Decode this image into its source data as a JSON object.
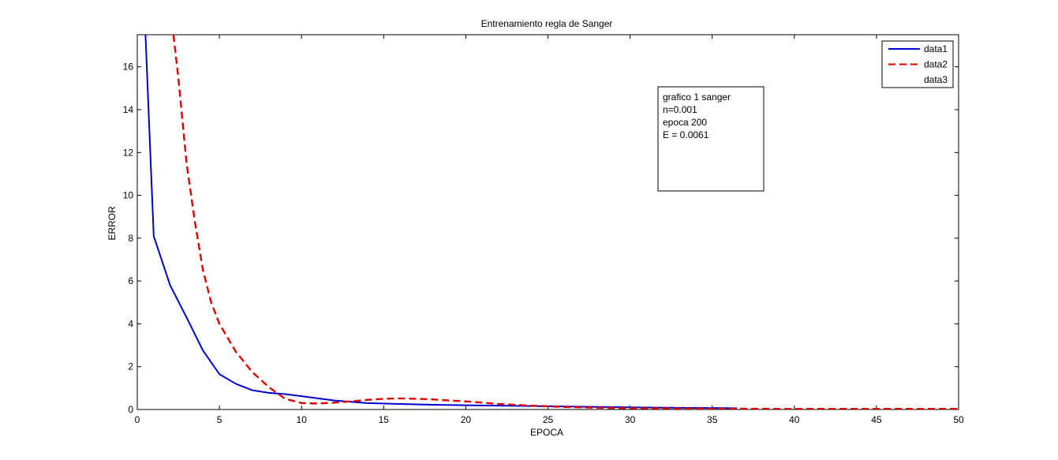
{
  "chart_data": {
    "type": "line",
    "title": "Entrenamiento regla de Sanger",
    "xlabel": "EPOCA",
    "ylabel": "ERROR",
    "xlim": [
      0,
      50
    ],
    "ylim": [
      0,
      17.5
    ],
    "xticks": [
      0,
      5,
      10,
      15,
      20,
      25,
      30,
      35,
      40,
      45,
      50
    ],
    "yticks": [
      0,
      2,
      4,
      6,
      8,
      10,
      12,
      14,
      16
    ],
    "grid": false,
    "legend_position": "top-right",
    "series": [
      {
        "name": "data1",
        "color": "#0000cc",
        "style": "solid",
        "x": [
          0.5,
          1,
          2,
          3,
          4,
          5,
          6,
          7,
          8,
          9,
          10,
          12,
          14,
          16,
          18,
          20,
          22,
          25,
          28,
          30,
          33,
          36.5
        ],
        "y": [
          17.5,
          8.1,
          5.8,
          4.3,
          2.75,
          1.65,
          1.2,
          0.9,
          0.78,
          0.72,
          0.62,
          0.42,
          0.3,
          0.26,
          0.22,
          0.2,
          0.18,
          0.15,
          0.12,
          0.1,
          0.08,
          0.06
        ]
      },
      {
        "name": "data2",
        "color": "#dd0000",
        "style": "dashed",
        "x": [
          2.2,
          2.5,
          3,
          3.5,
          4,
          4.5,
          5,
          6,
          7,
          8,
          9,
          10,
          11,
          12,
          13,
          14,
          15,
          16,
          17,
          18,
          19,
          20,
          21,
          22,
          24,
          26,
          28,
          30,
          35,
          40,
          45,
          50
        ],
        "y": [
          17.5,
          15.5,
          11.5,
          8.8,
          6.5,
          5.0,
          4.0,
          2.7,
          1.75,
          1.05,
          0.5,
          0.3,
          0.28,
          0.32,
          0.38,
          0.45,
          0.5,
          0.52,
          0.5,
          0.47,
          0.42,
          0.38,
          0.32,
          0.26,
          0.18,
          0.12,
          0.08,
          0.06,
          0.04,
          0.03,
          0.03,
          0.03
        ]
      },
      {
        "name": "data3",
        "color": "#ffffff",
        "style": "none",
        "x": [],
        "y": []
      }
    ],
    "annotation": {
      "lines": [
        "grafico 1 sanger",
        "n=0.001",
        "epoca 200",
        "E = 0.0061"
      ]
    }
  }
}
